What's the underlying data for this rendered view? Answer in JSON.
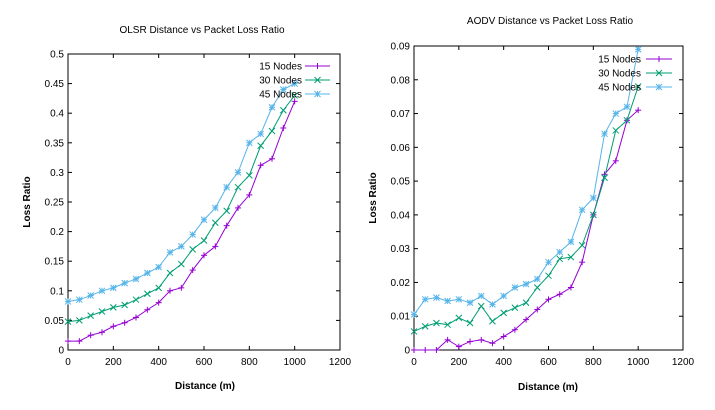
{
  "chart_data": [
    {
      "type": "line",
      "title": "OLSR Distance vs  Packet Loss Ratio",
      "xlabel": "Distance (m)",
      "ylabel": "Loss Ratio",
      "xlim": [
        0,
        1200
      ],
      "ylim": [
        0,
        0.5
      ],
      "xticks": [
        0,
        200,
        400,
        600,
        800,
        1000,
        1200
      ],
      "yticks": [
        0,
        0.05,
        0.1,
        0.15,
        0.2,
        0.25,
        0.3,
        0.35,
        0.4,
        0.45,
        0.5
      ],
      "ytick_labels": [
        "0",
        "0.05",
        "0.1",
        "0.15",
        "0.2",
        "0.25",
        "0.3",
        "0.35",
        "0.4",
        "0.45",
        "0.5"
      ],
      "xtick_labels": [
        "0",
        "200",
        "400",
        "600",
        "800",
        "1000",
        "1200"
      ],
      "legend_position": "top-right",
      "x": [
        0,
        50,
        100,
        150,
        200,
        250,
        300,
        350,
        400,
        450,
        500,
        550,
        600,
        650,
        700,
        750,
        800,
        850,
        900,
        950,
        1000
      ],
      "series": [
        {
          "name": "15 Nodes",
          "color": "#9400d3",
          "marker": "plus",
          "values": [
            0.015,
            0.015,
            0.025,
            0.03,
            0.04,
            0.046,
            0.055,
            0.068,
            0.08,
            0.1,
            0.105,
            0.135,
            0.16,
            0.175,
            0.21,
            0.24,
            0.262,
            0.312,
            0.323,
            0.375,
            0.42
          ]
        },
        {
          "name": "30 Nodes",
          "color": "#009e73",
          "marker": "x",
          "values": [
            0.048,
            0.05,
            0.058,
            0.065,
            0.072,
            0.076,
            0.085,
            0.095,
            0.105,
            0.13,
            0.145,
            0.17,
            0.185,
            0.215,
            0.235,
            0.275,
            0.295,
            0.345,
            0.37,
            0.405,
            0.43
          ]
        },
        {
          "name": "45 Nodes",
          "color": "#56b4e9",
          "marker": "star",
          "values": [
            0.082,
            0.085,
            0.092,
            0.1,
            0.105,
            0.113,
            0.12,
            0.13,
            0.14,
            0.165,
            0.175,
            0.195,
            0.22,
            0.24,
            0.275,
            0.3,
            0.35,
            0.365,
            0.41,
            0.44,
            0.45
          ]
        }
      ]
    },
    {
      "type": "line",
      "title": "AODV Distance vs  Packet Loss Ratio",
      "xlabel": "Distance (m)",
      "ylabel": "Loss Ratio",
      "xlim": [
        0,
        1200
      ],
      "ylim": [
        0,
        0.09
      ],
      "xticks": [
        0,
        200,
        400,
        600,
        800,
        1000,
        1200
      ],
      "yticks": [
        0,
        0.01,
        0.02,
        0.03,
        0.04,
        0.05,
        0.06,
        0.07,
        0.08,
        0.09
      ],
      "ytick_labels": [
        "0",
        "0.01",
        "0.02",
        "0.03",
        "0.04",
        "0.05",
        "0.06",
        "0.07",
        "0.08",
        "0.09"
      ],
      "xtick_labels": [
        "0",
        "200",
        "400",
        "600",
        "800",
        "1000",
        "1200"
      ],
      "legend_position": "top-right",
      "x": [
        0,
        50,
        100,
        150,
        200,
        250,
        300,
        350,
        400,
        450,
        500,
        550,
        600,
        650,
        700,
        750,
        800,
        850,
        900,
        950,
        1000
      ],
      "series": [
        {
          "name": "15 Nodes",
          "color": "#9400d3",
          "marker": "plus",
          "values": [
            0.0,
            0.0,
            0.0,
            0.003,
            0.001,
            0.0025,
            0.003,
            0.002,
            0.004,
            0.006,
            0.009,
            0.012,
            0.015,
            0.0165,
            0.0185,
            0.026,
            0.04,
            0.052,
            0.056,
            0.068,
            0.071
          ]
        },
        {
          "name": "30 Nodes",
          "color": "#009e73",
          "marker": "x",
          "values": [
            0.0055,
            0.007,
            0.008,
            0.0075,
            0.0095,
            0.008,
            0.013,
            0.0085,
            0.011,
            0.0125,
            0.014,
            0.0185,
            0.022,
            0.027,
            0.0275,
            0.031,
            0.04,
            0.051,
            0.065,
            0.068,
            0.078
          ]
        },
        {
          "name": "45 Nodes",
          "color": "#56b4e9",
          "marker": "star",
          "values": [
            0.0105,
            0.015,
            0.0155,
            0.0145,
            0.015,
            0.014,
            0.016,
            0.0135,
            0.016,
            0.0185,
            0.0195,
            0.021,
            0.026,
            0.029,
            0.032,
            0.0415,
            0.045,
            0.064,
            0.07,
            0.072,
            0.089
          ]
        }
      ]
    }
  ]
}
